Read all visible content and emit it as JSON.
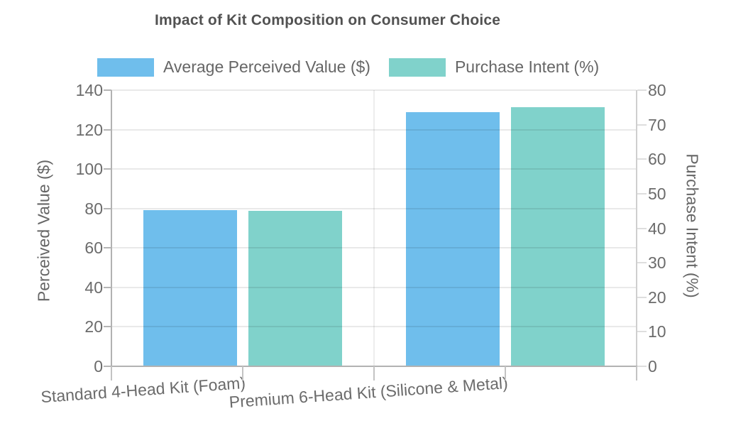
{
  "title": "Impact of Kit Composition on Consumer Choice",
  "left_axis": {
    "title": "Perceived Value ($)",
    "ticks": [
      "0",
      "20",
      "40",
      "60",
      "80",
      "100",
      "120",
      "140"
    ]
  },
  "right_axis": {
    "title": "Purchase Intent (%)",
    "ticks": [
      "0",
      "10",
      "20",
      "30",
      "40",
      "50",
      "60",
      "70",
      "80"
    ]
  },
  "chart_data": {
    "type": "bar",
    "title": "Impact of Kit Composition on Consumer Choice",
    "categories": [
      "Standard 4-Head Kit (Foam)",
      "Premium 6-Head Kit (Silicone & Metal)"
    ],
    "series": [
      {
        "name": "Average Perceived Value ($)",
        "axis": "left",
        "color": "#6FBEEC",
        "values": [
          79,
          129
        ]
      },
      {
        "name": "Purchase Intent (%)",
        "axis": "right",
        "color": "#80D2CB",
        "values": [
          45,
          75
        ]
      }
    ],
    "left_ylabel": "Perceived Value ($)",
    "right_ylabel": "Purchase Intent (%)",
    "left_ylim": [
      0,
      140
    ],
    "right_ylim": [
      0,
      80
    ],
    "grid": true,
    "legend_position": "top",
    "background": "#ffffff"
  }
}
